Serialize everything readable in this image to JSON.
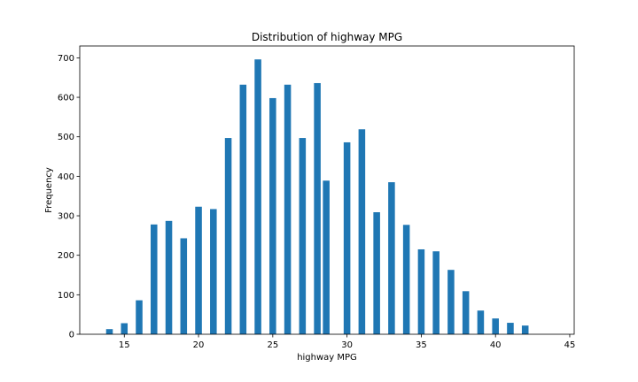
{
  "chart_data": {
    "type": "bar",
    "title": "Distribution of highway MPG",
    "xlabel": "highway MPG",
    "ylabel": "Frequency",
    "xlim": [
      12,
      45.3
    ],
    "ylim": [
      0,
      730
    ],
    "xticks": [
      15,
      20,
      25,
      30,
      35,
      40,
      45
    ],
    "yticks": [
      0,
      100,
      200,
      300,
      400,
      500,
      600,
      700
    ],
    "bar_color": "#1f77b4",
    "grid": false,
    "series": [
      {
        "values": [
          {
            "x": 14,
            "y": 13
          },
          {
            "x": 15,
            "y": 28
          },
          {
            "x": 16,
            "y": 86
          },
          {
            "x": 17,
            "y": 278
          },
          {
            "x": 18,
            "y": 287
          },
          {
            "x": 19,
            "y": 243
          },
          {
            "x": 20,
            "y": 323
          },
          {
            "x": 21,
            "y": 317
          },
          {
            "x": 22,
            "y": 497
          },
          {
            "x": 23,
            "y": 632
          },
          {
            "x": 24,
            "y": 696
          },
          {
            "x": 25,
            "y": 598
          },
          {
            "x": 26,
            "y": 632
          },
          {
            "x": 27,
            "y": 497
          },
          {
            "x": 28,
            "y": 636
          },
          {
            "x": 28.6,
            "y": 389
          },
          {
            "x": 30,
            "y": 486
          },
          {
            "x": 31,
            "y": 519
          },
          {
            "x": 32,
            "y": 309
          },
          {
            "x": 33,
            "y": 385
          },
          {
            "x": 34,
            "y": 277
          },
          {
            "x": 35,
            "y": 215
          },
          {
            "x": 36,
            "y": 210
          },
          {
            "x": 37,
            "y": 163
          },
          {
            "x": 38,
            "y": 109
          },
          {
            "x": 39,
            "y": 60
          },
          {
            "x": 40,
            "y": 40
          },
          {
            "x": 41,
            "y": 29
          },
          {
            "x": 42,
            "y": 22
          }
        ]
      }
    ]
  }
}
